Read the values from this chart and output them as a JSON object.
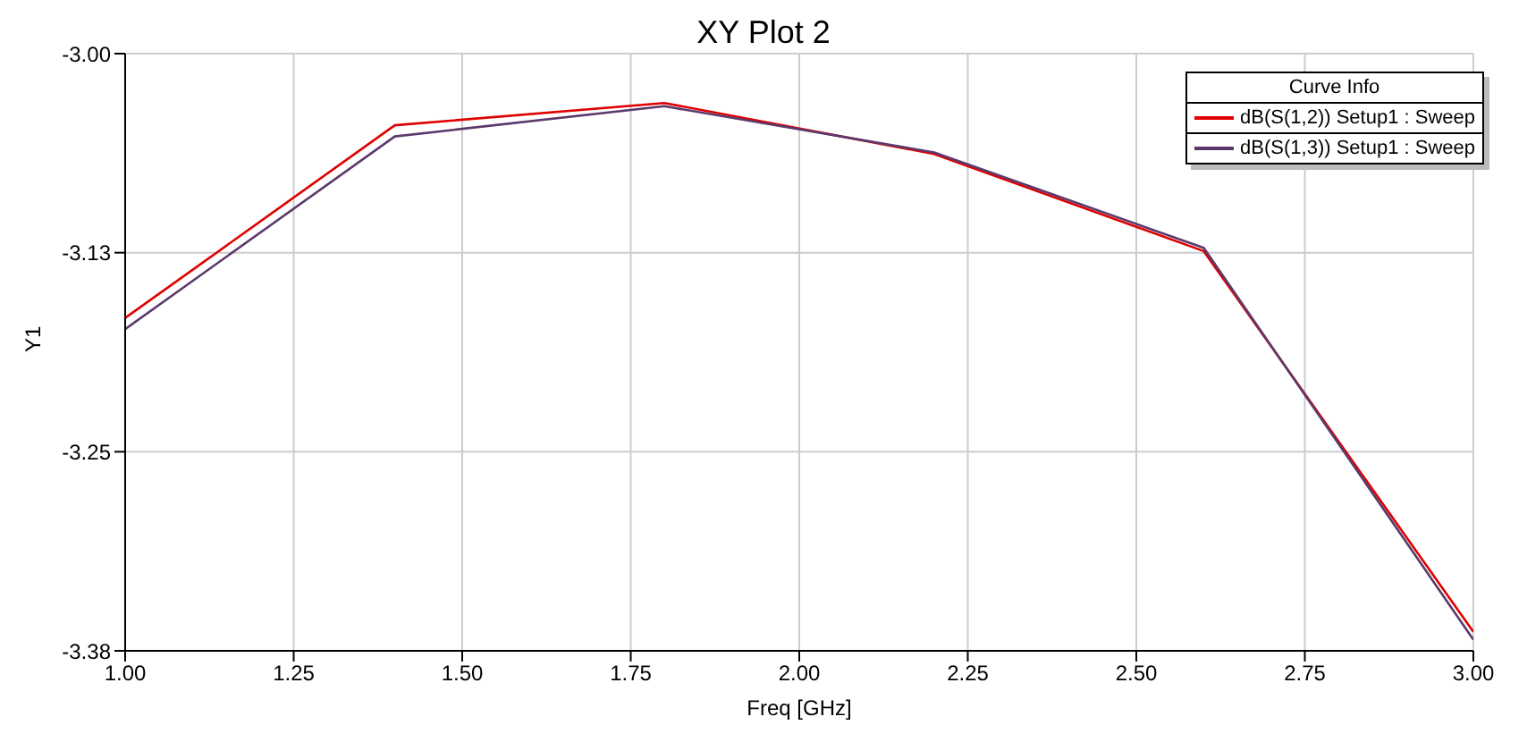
{
  "chart_data": {
    "type": "line",
    "title": "XY Plot 2",
    "xlabel": "Freq [GHz]",
    "ylabel": "Y1",
    "legend_title": "Curve Info",
    "x": [
      1.0,
      1.4,
      1.8,
      2.2,
      2.6,
      3.0
    ],
    "series": [
      {
        "name": "dB(S(1,2)) Setup1 : Sweep",
        "color": "#e00000",
        "values": [
          -3.166,
          -3.045,
          -3.031,
          -3.063,
          -3.124,
          -3.363
        ]
      },
      {
        "name": "dB(S(1,3)) Setup1 : Sweep",
        "color": "#5b3a6b",
        "values": [
          -3.173,
          -3.052,
          -3.033,
          -3.062,
          -3.122,
          -3.368
        ]
      }
    ],
    "xlim": [
      1.0,
      3.0
    ],
    "xticks": [
      {
        "value": 1.0,
        "label": "1.00"
      },
      {
        "value": 1.25,
        "label": "1.25"
      },
      {
        "value": 1.5,
        "label": "1.50"
      },
      {
        "value": 1.75,
        "label": "1.75"
      },
      {
        "value": 2.0,
        "label": "2.00"
      },
      {
        "value": 2.25,
        "label": "2.25"
      },
      {
        "value": 2.5,
        "label": "2.50"
      },
      {
        "value": 2.75,
        "label": "2.75"
      },
      {
        "value": 3.0,
        "label": "3.00"
      }
    ],
    "ylim": [
      -3.375,
      -3.0
    ],
    "yticks": [
      {
        "value": -3.375,
        "label": "-3.38"
      },
      {
        "value": -3.25,
        "label": "-3.25"
      },
      {
        "value": -3.125,
        "label": "-3.13"
      },
      {
        "value": -3.0,
        "label": "-3.00"
      }
    ],
    "grid": true,
    "legend": "top right",
    "marker": "none",
    "line_style": "solid"
  }
}
